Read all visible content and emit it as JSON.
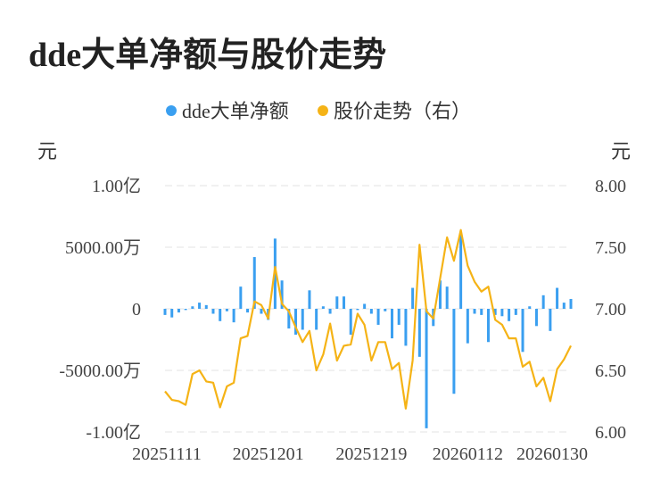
{
  "title": "dde大单净额与股价走势",
  "chart_data": {
    "type": "bar+line",
    "legend_placement": "top-center",
    "grid": true,
    "x_tick_labels": [
      "20251111",
      "20251201",
      "20251219",
      "20260112",
      "20260130"
    ],
    "left_unit": "元",
    "right_unit": "元",
    "left_axis_ticks": [
      "1.00亿",
      "5000.00万",
      "0",
      "-5000.00万",
      "-1.00亿"
    ],
    "right_axis_ticks": [
      "8.00",
      "7.50",
      "7.00",
      "6.50",
      "6.00"
    ],
    "left_ylim": [
      -100000000,
      100000000
    ],
    "right_ylim": [
      6.0,
      8.0
    ],
    "series": [
      {
        "name": "dde大单净额",
        "axis": "left",
        "kind": "bar",
        "color": "#3a9ff0",
        "values": [
          -5000000,
          -7000000,
          -3000000,
          -1000000,
          2000000,
          5000000,
          3000000,
          -4000000,
          -10000000,
          -2000000,
          -11000000,
          18000000,
          -3000000,
          42000000,
          -4000000,
          -9000000,
          57000000,
          23000000,
          -16000000,
          -21000000,
          -17000000,
          15000000,
          -17000000,
          2000000,
          -4000000,
          10000000,
          10000000,
          -21000000,
          -1000000,
          4000000,
          -4000000,
          -13000000,
          -2000000,
          -24000000,
          -13000000,
          -30000000,
          17000000,
          -39000000,
          -97000000,
          -14000000,
          23000000,
          18000000,
          -69000000,
          60000000,
          -28000000,
          -4000000,
          -5000000,
          -27000000,
          -5000000,
          -6000000,
          -10000000,
          -5000000,
          -35000000,
          2000000,
          -14000000,
          11000000,
          -18000000,
          17000000,
          5000000,
          8000000
        ]
      },
      {
        "name": "股价走势（右）",
        "axis": "right",
        "kind": "line",
        "color": "#f5b316",
        "values": [
          6.33,
          6.26,
          6.25,
          6.22,
          6.47,
          6.5,
          6.41,
          6.4,
          6.2,
          6.37,
          6.4,
          6.76,
          6.78,
          7.06,
          7.03,
          6.92,
          7.34,
          7.04,
          6.98,
          6.85,
          6.73,
          6.82,
          6.5,
          6.63,
          6.88,
          6.58,
          6.7,
          6.71,
          6.96,
          6.87,
          6.58,
          6.73,
          6.73,
          6.51,
          6.56,
          6.19,
          6.58,
          7.52,
          6.98,
          6.92,
          7.25,
          7.58,
          7.39,
          7.64,
          7.35,
          7.22,
          7.14,
          7.18,
          6.91,
          6.87,
          6.76,
          6.76,
          6.53,
          6.57,
          6.37,
          6.44,
          6.25,
          6.51,
          6.59,
          6.7
        ]
      }
    ]
  }
}
